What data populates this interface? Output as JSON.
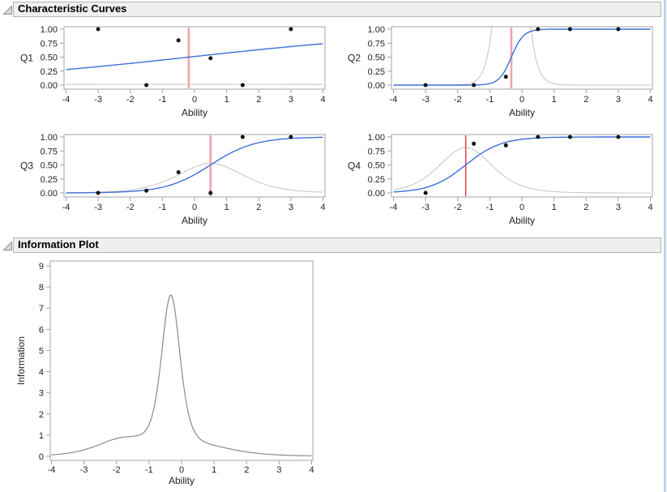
{
  "sections": {
    "characteristic": {
      "title": "Characteristic Curves"
    },
    "information": {
      "title": "Information Plot"
    }
  },
  "colors": {
    "icc_line": "#3d6fd7",
    "item_info_line": "#c9c9c9",
    "total_info_line": "#8a8a8a",
    "difficulty_line_pink": "#f2a3ab",
    "difficulty_line_red": "#e23340",
    "data_point": "#111111",
    "plot_frame": "#a3a3a3",
    "tick_text": "#222222",
    "header_bg": "#efefef",
    "header_border": "#b5b5b5",
    "window_right_border": "#bdd4ec"
  },
  "chart_data": [
    {
      "type": "line+scatter",
      "title": "Q1",
      "ylabel": "Q1",
      "xlabel": "Ability",
      "xlim": [
        -4,
        4
      ],
      "ylim": [
        0,
        1
      ],
      "x_tick_labels": [
        "-4",
        "-3",
        "-2",
        "-1",
        "0",
        "1",
        "2",
        "3",
        "4"
      ],
      "y_tick_labels": [
        "0.00",
        "0.25",
        "0.50",
        "0.75",
        "1.00"
      ],
      "icc": {
        "a": 0.25,
        "b": -0.18
      },
      "difficulty_vline": -0.18,
      "vline_style": "pink",
      "points": {
        "x": [
          -3,
          -1.5,
          -0.5,
          0.5,
          1.5,
          3
        ],
        "y": [
          1,
          0,
          0.8,
          0.48,
          0,
          1
        ]
      }
    },
    {
      "type": "line+scatter",
      "title": "Q2",
      "ylabel": "Q2",
      "xlabel": "Ability",
      "xlim": [
        -4,
        4
      ],
      "ylim": [
        0,
        1
      ],
      "x_tick_labels": [
        "-4",
        "-3",
        "-2",
        "-1",
        "0",
        "1",
        "2",
        "3",
        "4"
      ],
      "y_tick_labels": [
        "0.00",
        "0.25",
        "0.50",
        "0.75",
        "1.00"
      ],
      "icc": {
        "a": 5.3,
        "b": -0.33
      },
      "difficulty_vline": -0.33,
      "vline_style": "pink",
      "points": {
        "x": [
          -3,
          -1.5,
          -0.5,
          0.5,
          1.5,
          3
        ],
        "y": [
          0,
          0,
          0.15,
          1,
          1,
          1
        ]
      }
    },
    {
      "type": "line+scatter",
      "title": "Q3",
      "ylabel": "Q3",
      "xlabel": "Ability",
      "xlim": [
        -4,
        4
      ],
      "ylim": [
        0,
        1
      ],
      "x_tick_labels": [
        "-4",
        "-3",
        "-2",
        "-1",
        "0",
        "1",
        "2",
        "3",
        "4"
      ],
      "y_tick_labels": [
        "0.00",
        "0.25",
        "0.50",
        "0.75",
        "1.00"
      ],
      "icc": {
        "a": 1.45,
        "b": 0.5
      },
      "difficulty_vline": 0.5,
      "vline_style": "pink",
      "points": {
        "x": [
          -3,
          -1.5,
          -0.5,
          0.5,
          1.5,
          3
        ],
        "y": [
          0,
          0.04,
          0.37,
          0,
          1,
          1
        ]
      }
    },
    {
      "type": "line+scatter",
      "title": "Q4",
      "ylabel": "Q4",
      "xlabel": "Ability",
      "xlim": [
        -4,
        4
      ],
      "ylim": [
        0,
        1
      ],
      "x_tick_labels": [
        "-4",
        "-3",
        "-2",
        "-1",
        "0",
        "1",
        "2",
        "3",
        "4"
      ],
      "y_tick_labels": [
        "0.00",
        "0.25",
        "0.50",
        "0.75",
        "1.00"
      ],
      "icc": {
        "a": 1.8,
        "b": -1.75
      },
      "difficulty_vline": -1.75,
      "vline_style": "red",
      "points": {
        "x": [
          -3,
          -1.5,
          -0.5,
          0.5,
          1.5,
          3
        ],
        "y": [
          0,
          0.88,
          0.85,
          1,
          1,
          1
        ]
      }
    },
    {
      "type": "line",
      "title": "Information Plot",
      "ylabel": "Information",
      "xlabel": "Ability",
      "xlim": [
        -4,
        4
      ],
      "ylim": [
        0,
        9
      ],
      "x_tick_labels": [
        "-4",
        "-3",
        "-2",
        "-1",
        "0",
        "1",
        "2",
        "3",
        "4"
      ],
      "y_tick_labels": [
        "0",
        "1",
        "2",
        "3",
        "4",
        "5",
        "6",
        "7",
        "8",
        "9"
      ],
      "curve": "total test information = sum of item information curves",
      "sampled_points": {
        "x": [
          -4,
          -3.5,
          -3,
          -2.5,
          -2,
          -1.5,
          -1,
          -0.75,
          -0.5,
          -0.35,
          -0.25,
          0,
          0.25,
          0.5,
          0.75,
          1,
          1.5,
          2,
          2.5,
          3,
          3.5,
          4
        ],
        "y": [
          0.07,
          0.15,
          0.31,
          0.57,
          0.84,
          0.96,
          1.58,
          3.36,
          6.64,
          7.63,
          7.17,
          3.89,
          1.7,
          0.9,
          0.65,
          0.51,
          0.34,
          0.21,
          0.12,
          0.07,
          0.04,
          0.03
        ]
      }
    }
  ]
}
